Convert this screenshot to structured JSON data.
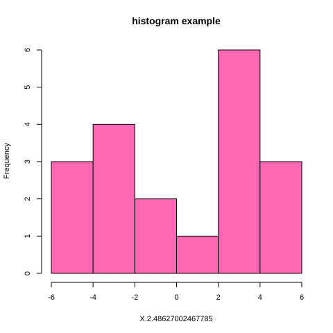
{
  "chart_data": {
    "type": "bar",
    "title": "histogram example",
    "xlabel": "X.2.48627002467785",
    "ylabel": "Frequency",
    "bins": [
      {
        "start": -6,
        "end": -4,
        "count": 3
      },
      {
        "start": -4,
        "end": -2,
        "count": 4
      },
      {
        "start": -2,
        "end": 0,
        "count": 2
      },
      {
        "start": 0,
        "end": 2,
        "count": 1
      },
      {
        "start": 2,
        "end": 4,
        "count": 6
      },
      {
        "start": 4,
        "end": 6,
        "count": 3
      }
    ],
    "xlim": [
      -6,
      6
    ],
    "ylim": [
      0,
      6
    ],
    "xticks": [
      "-6",
      "-4",
      "-2",
      "0",
      "2",
      "4",
      "6"
    ],
    "yticks": [
      "0",
      "1",
      "2",
      "3",
      "4",
      "5",
      "6"
    ],
    "bar_color": "#ff69b4",
    "grid": false
  }
}
